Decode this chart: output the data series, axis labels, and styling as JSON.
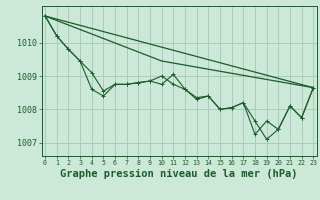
{
  "background_color": "#cce8d8",
  "grid_color": "#aaccbb",
  "line_color": "#1a5c2a",
  "xlabel": "Graphe pression niveau de la mer (hPa)",
  "xlabel_fontsize": 7.5,
  "ylim": [
    1006.6,
    1011.1
  ],
  "yticks": [
    1007,
    1008,
    1009,
    1010
  ],
  "xticks": [
    0,
    1,
    2,
    3,
    4,
    5,
    6,
    7,
    8,
    9,
    10,
    11,
    12,
    13,
    14,
    15,
    16,
    17,
    18,
    19,
    20,
    21,
    22,
    23
  ],
  "series_main": [
    1010.8,
    1010.2,
    1009.8,
    1009.45,
    1009.1,
    1008.55,
    1008.75,
    1008.75,
    1008.8,
    1008.85,
    1009.0,
    1008.75,
    1008.6,
    1008.35,
    1008.4,
    1008.0,
    1008.05,
    1008.2,
    1007.65,
    1007.1,
    1007.4,
    1008.1,
    1007.75,
    1008.65
  ],
  "series_alt": [
    1010.8,
    1010.2,
    1009.8,
    1009.45,
    1008.6,
    1008.4,
    1008.75,
    1008.75,
    1008.8,
    1008.85,
    1008.75,
    1009.05,
    1008.6,
    1008.3,
    1008.4,
    1008.0,
    1008.05,
    1008.2,
    1007.25,
    1007.65,
    1007.4,
    1008.1,
    1007.75,
    1008.65
  ],
  "trend1_x": [
    0,
    23
  ],
  "trend1_y": [
    1010.8,
    1008.65
  ],
  "trend2_x": [
    0,
    10,
    23
  ],
  "trend2_y": [
    1010.8,
    1009.45,
    1008.65
  ]
}
